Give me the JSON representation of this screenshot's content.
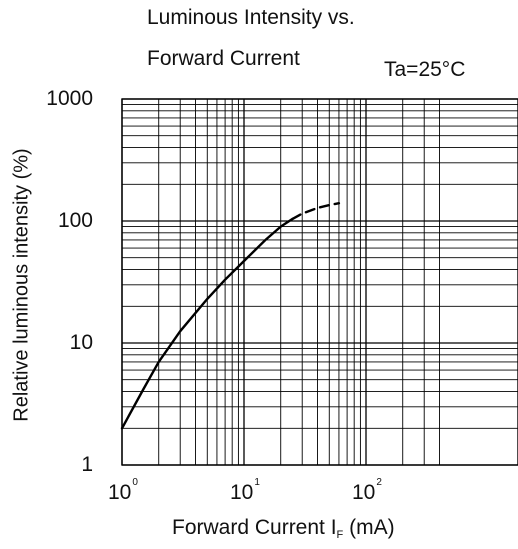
{
  "chart_data": {
    "type": "line",
    "title_lines": [
      "Luminous Intensity vs.",
      "Forward Current"
    ],
    "condition": "Ta=25°C",
    "ylabel": "Relative luminous intensity (%)",
    "xlabel": {
      "main": "Forward Current  I",
      "sub": "F",
      "unit": " (mA)"
    },
    "x_scale": "log",
    "y_scale": "log",
    "xlim": [
      1,
      400
    ],
    "ylim": [
      1,
      1000
    ],
    "grid": true,
    "y_ticks": [
      {
        "value": 1000,
        "label": "1000"
      },
      {
        "value": 100,
        "label": "100"
      },
      {
        "value": 10,
        "label": "10"
      },
      {
        "value": 1,
        "label": "1"
      }
    ],
    "x_ticks": [
      {
        "value": 1,
        "base": "10",
        "exp": "0"
      },
      {
        "value": 10,
        "base": "10",
        "exp": "1"
      },
      {
        "value": 100,
        "base": "10",
        "exp": "2"
      }
    ],
    "series": [
      {
        "style": "solid",
        "x": [
          1,
          1.5,
          2,
          3,
          5,
          7,
          10,
          15,
          20,
          25
        ],
        "y": [
          2,
          4.2,
          7,
          12.5,
          23,
          33,
          47,
          70,
          90,
          104
        ]
      },
      {
        "style": "dashed",
        "x": [
          25,
          30,
          40,
          50,
          60
        ],
        "y": [
          104,
          115,
          128,
          135,
          140
        ]
      }
    ]
  }
}
